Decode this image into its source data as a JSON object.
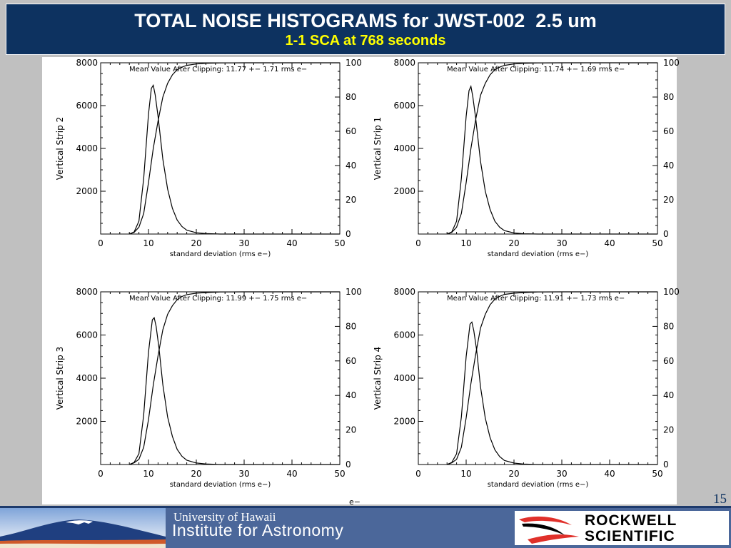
{
  "slide": {
    "title": "TOTAL NOISE HISTOGRAMS for JWST-002  2.5 um",
    "subtitle": "1-1 SCA at 768 seconds",
    "page_number": "15",
    "stray_label": "e−",
    "colors": {
      "title_bg": "#0d3260",
      "title_text": "#ffffff",
      "subtitle_text": "#ffff00",
      "footer_bg": "#4b679a",
      "logo_red": "#e0302a"
    }
  },
  "footer": {
    "uh_line1": "University of Hawaii",
    "uh_line2": "Institute for Astronomy",
    "rs_line1": "ROCKWELL",
    "rs_line2": "SCIENTIFIC",
    "uh_logo_icon": "mauna-kea-logo",
    "rs_logo_icon": "rockwell-swoosh-logo"
  },
  "chart_data": [
    {
      "type": "line",
      "ylabel": "Vertical Strip 2",
      "xlabel": "standard deviation (rms e−)",
      "annotation": "Mean Value After Clipping: 11.77 +− 1.71 rms e−",
      "xlim": [
        0,
        50
      ],
      "ylim": [
        0,
        8000
      ],
      "y2lim": [
        0,
        100
      ],
      "xticks": [
        "0",
        "10",
        "20",
        "30",
        "40",
        "50"
      ],
      "yticks": [
        "2000",
        "4000",
        "6000",
        "8000"
      ],
      "y2ticks": [
        "0",
        "20",
        "40",
        "60",
        "80",
        "100"
      ],
      "series": [
        {
          "axis": "left",
          "x": [
            6,
            7,
            8,
            9,
            10,
            10.6,
            11,
            11.4,
            12,
            13,
            14,
            15,
            16,
            17,
            18,
            20,
            22,
            25,
            30,
            50
          ],
          "y": [
            0,
            100,
            600,
            2600,
            5600,
            6800,
            6950,
            6500,
            5500,
            3500,
            2100,
            1200,
            650,
            350,
            180,
            60,
            20,
            0,
            0,
            0
          ]
        },
        {
          "axis": "right",
          "x": [
            6,
            7,
            8,
            9,
            10,
            11,
            12,
            13,
            14,
            15,
            16,
            17,
            18,
            20,
            22,
            25,
            30,
            35,
            40,
            50
          ],
          "y": [
            0,
            1,
            4,
            12,
            30,
            50,
            66,
            80,
            88,
            93,
            96,
            97.5,
            98.5,
            99.3,
            99.7,
            99.9,
            100,
            100,
            100,
            100
          ]
        }
      ]
    },
    {
      "type": "line",
      "ylabel": "Vertical Strip 1",
      "xlabel": "standard deviation (rms e−)",
      "annotation": "Mean Value After Clipping: 11.74 +− 1.69 rms e−",
      "xlim": [
        0,
        50
      ],
      "ylim": [
        0,
        8000
      ],
      "y2lim": [
        0,
        100
      ],
      "xticks": [
        "0",
        "10",
        "20",
        "30",
        "40",
        "50"
      ],
      "yticks": [
        "2000",
        "4000",
        "6000",
        "8000"
      ],
      "y2ticks": [
        "0",
        "20",
        "40",
        "60",
        "80",
        "100"
      ],
      "series": [
        {
          "axis": "left",
          "x": [
            6,
            7,
            8,
            9,
            10,
            10.6,
            11,
            11.4,
            12,
            13,
            14,
            15,
            16,
            17,
            18,
            20,
            22,
            25,
            30,
            50
          ],
          "y": [
            0,
            100,
            600,
            2600,
            5500,
            6700,
            6900,
            6400,
            5400,
            3400,
            2000,
            1150,
            600,
            320,
            160,
            50,
            15,
            0,
            0,
            0
          ]
        },
        {
          "axis": "right",
          "x": [
            6,
            7,
            8,
            9,
            10,
            11,
            12,
            13,
            14,
            15,
            16,
            17,
            18,
            20,
            22,
            25,
            30,
            35,
            40,
            50
          ],
          "y": [
            0,
            1,
            4,
            12,
            30,
            50,
            67,
            81,
            88,
            93,
            96,
            97.5,
            98.5,
            99.3,
            99.7,
            99.9,
            100,
            100,
            100,
            100
          ]
        }
      ]
    },
    {
      "type": "line",
      "ylabel": "Vertical Strip 3",
      "xlabel": "standard deviation (rms e−)",
      "annotation": "Mean Value After Clipping: 11.99 +− 1.75 rms e−",
      "xlim": [
        0,
        50
      ],
      "ylim": [
        0,
        8000
      ],
      "y2lim": [
        0,
        100
      ],
      "xticks": [
        "0",
        "10",
        "20",
        "30",
        "40",
        "50"
      ],
      "yticks": [
        "2000",
        "4000",
        "6000",
        "8000"
      ],
      "y2ticks": [
        "0",
        "20",
        "40",
        "60",
        "80",
        "100"
      ],
      "series": [
        {
          "axis": "left",
          "x": [
            6,
            7,
            8,
            9,
            10,
            10.8,
            11.2,
            11.6,
            12.2,
            13,
            14,
            15,
            16,
            17,
            18,
            20,
            22,
            25,
            30,
            50
          ],
          "y": [
            0,
            100,
            500,
            2300,
            5200,
            6700,
            6800,
            6400,
            5400,
            3700,
            2200,
            1300,
            700,
            380,
            200,
            70,
            25,
            0,
            0,
            0
          ]
        },
        {
          "axis": "right",
          "x": [
            6,
            7,
            8,
            9,
            10,
            11,
            12,
            13,
            14,
            15,
            16,
            17,
            18,
            20,
            22,
            25,
            30,
            35,
            40,
            50
          ],
          "y": [
            0,
            1,
            3,
            10,
            26,
            46,
            63,
            78,
            87,
            92,
            95.5,
            97.3,
            98.4,
            99.2,
            99.6,
            99.9,
            100,
            100,
            100,
            100
          ]
        }
      ]
    },
    {
      "type": "line",
      "ylabel": "Vertical Strip 4",
      "xlabel": "standard deviation (rms e−)",
      "annotation": "Mean Value After Clipping: 11.91 +− 1.73 rms e−",
      "xlim": [
        0,
        50
      ],
      "ylim": [
        0,
        8000
      ],
      "y2lim": [
        0,
        100
      ],
      "xticks": [
        "0",
        "10",
        "20",
        "30",
        "40",
        "50"
      ],
      "yticks": [
        "2000",
        "4000",
        "6000",
        "8000"
      ],
      "y2ticks": [
        "0",
        "20",
        "40",
        "60",
        "80",
        "100"
      ],
      "series": [
        {
          "axis": "left",
          "x": [
            6,
            7,
            8,
            9,
            10,
            10.8,
            11.2,
            11.6,
            12.2,
            13,
            14,
            15,
            16,
            17,
            18,
            20,
            22,
            25,
            30,
            50
          ],
          "y": [
            0,
            100,
            500,
            2200,
            5000,
            6500,
            6600,
            6200,
            5300,
            3600,
            2150,
            1250,
            680,
            370,
            190,
            65,
            22,
            0,
            0,
            0
          ]
        },
        {
          "axis": "right",
          "x": [
            6,
            7,
            8,
            9,
            10,
            11,
            12,
            13,
            14,
            15,
            16,
            17,
            18,
            20,
            22,
            25,
            30,
            35,
            40,
            50
          ],
          "y": [
            0,
            1,
            3,
            10,
            27,
            47,
            64,
            79,
            87,
            92.5,
            95.7,
            97.4,
            98.5,
            99.2,
            99.6,
            99.9,
            100,
            100,
            100,
            100
          ]
        }
      ]
    }
  ]
}
